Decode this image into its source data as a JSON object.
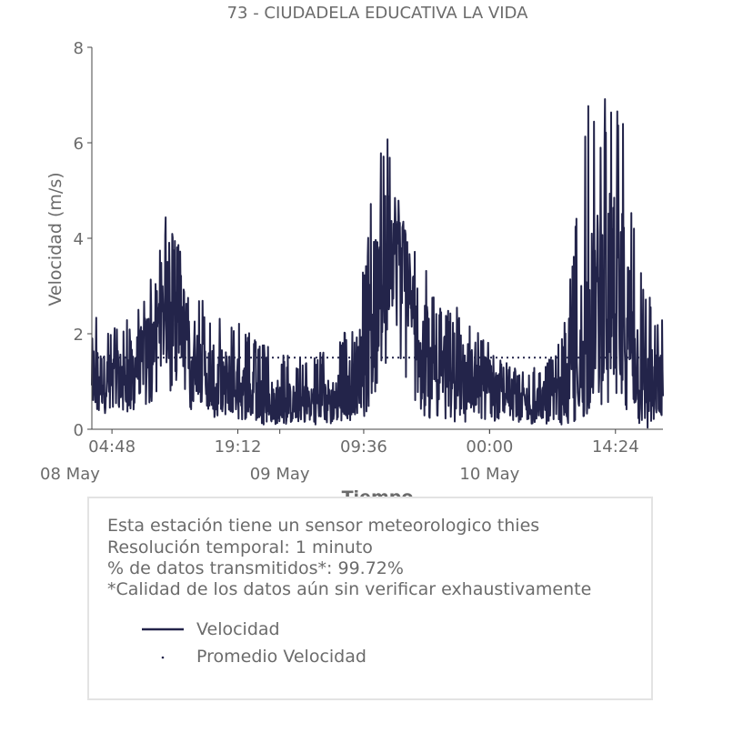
{
  "chart_data": {
    "type": "line",
    "title": "73 - CIUDADELA EDUCATIVA LA VIDA",
    "xlabel": "Tiempo",
    "ylabel": "Velocidad (m/s)",
    "ylim": [
      0,
      8
    ],
    "yticks": [
      "0",
      "2",
      "4",
      "6",
      "8"
    ],
    "xlim": [
      "2024-05-08 02:30",
      "2024-05-10 19:50"
    ],
    "xticks": [
      {
        "time": "2024-05-08 04:48",
        "label": "04:48"
      },
      {
        "time": "2024-05-08 19:12",
        "label": "19:12"
      },
      {
        "time": "2024-05-09 09:36",
        "label": "09:36"
      },
      {
        "time": "2024-05-10 00:00",
        "label": "00:00"
      },
      {
        "time": "2024-05-10 14:24",
        "label": "14:24"
      }
    ],
    "day_labels": [
      {
        "time": "2024-05-08 00:00",
        "label": "08 May"
      },
      {
        "time": "2024-05-09 00:00",
        "label": "09 May"
      },
      {
        "time": "2024-05-10 00:00",
        "label": "10 May"
      }
    ],
    "grid": false,
    "series": [
      {
        "name": "Velocidad",
        "style": "line",
        "color": "#23244a",
        "x": [
          "2024-05-08 02:30",
          "2024-05-08 04:00",
          "2024-05-08 06:00",
          "2024-05-08 08:00",
          "2024-05-08 09:00",
          "2024-05-08 10:00",
          "2024-05-08 11:00",
          "2024-05-08 12:00",
          "2024-05-08 13:00",
          "2024-05-08 14:00",
          "2024-05-08 15:00",
          "2024-05-08 16:00",
          "2024-05-08 18:00",
          "2024-05-08 20:00",
          "2024-05-08 22:00",
          "2024-05-09 00:00",
          "2024-05-09 02:00",
          "2024-05-09 04:00",
          "2024-05-09 06:00",
          "2024-05-09 08:00",
          "2024-05-09 09:30",
          "2024-05-09 10:30",
          "2024-05-09 11:30",
          "2024-05-09 12:30",
          "2024-05-09 13:30",
          "2024-05-09 14:30",
          "2024-05-09 15:30",
          "2024-05-09 16:30",
          "2024-05-09 18:00",
          "2024-05-09 20:00",
          "2024-05-09 22:00",
          "2024-05-10 00:00",
          "2024-05-10 02:00",
          "2024-05-10 04:00",
          "2024-05-10 06:00",
          "2024-05-10 08:00",
          "2024-05-10 09:00",
          "2024-05-10 10:00",
          "2024-05-10 11:00",
          "2024-05-10 12:00",
          "2024-05-10 13:00",
          "2024-05-10 14:00",
          "2024-05-10 15:00",
          "2024-05-10 16:00",
          "2024-05-10 17:00",
          "2024-05-10 18:00",
          "2024-05-10 19:00",
          "2024-05-10 19:50"
        ],
        "mean": [
          1.2,
          1.0,
          1.1,
          1.4,
          1.8,
          2.2,
          2.4,
          2.6,
          2.2,
          1.7,
          1.3,
          1.1,
          1.0,
          0.8,
          0.6,
          0.6,
          0.5,
          0.6,
          0.6,
          0.9,
          1.5,
          2.4,
          3.1,
          3.8,
          4.0,
          3.2,
          2.2,
          1.9,
          1.8,
          1.5,
          1.1,
          1.0,
          0.7,
          0.6,
          0.6,
          0.6,
          0.8,
          1.3,
          2.0,
          2.6,
          3.0,
          3.0,
          2.7,
          2.1,
          1.3,
          0.8,
          0.9,
          1.0
        ],
        "min": [
          0.3,
          0.3,
          0.3,
          0.4,
          0.5,
          0.7,
          0.8,
          0.7,
          0.5,
          0.4,
          0.3,
          0.2,
          0.2,
          0.2,
          0.1,
          0.1,
          0.1,
          0.1,
          0.1,
          0.1,
          0.2,
          0.6,
          1.0,
          1.4,
          1.5,
          0.8,
          0.4,
          0.2,
          0.2,
          0.1,
          0.1,
          0.1,
          0.1,
          0.1,
          0.1,
          0.1,
          0.1,
          0.2,
          0.3,
          0.5,
          0.4,
          0.5,
          0.3,
          0.2,
          0.1,
          0.0,
          0.1,
          0.1
        ],
        "max": [
          2.7,
          2.2,
          2.2,
          2.7,
          3.2,
          3.5,
          4.6,
          4.0,
          3.7,
          3.0,
          2.8,
          2.5,
          2.4,
          2.2,
          1.8,
          1.6,
          1.5,
          1.6,
          1.7,
          2.2,
          3.3,
          5.0,
          6.3,
          6.2,
          5.0,
          4.1,
          3.7,
          3.4,
          2.9,
          2.6,
          2.2,
          1.8,
          1.4,
          1.2,
          1.4,
          1.8,
          2.6,
          5.6,
          6.9,
          6.5,
          7.0,
          7.4,
          7.3,
          5.8,
          4.1,
          3.2,
          2.6,
          2.3
        ]
      },
      {
        "name": "Promedio Velocidad",
        "style": "dotted",
        "color": "#23244a",
        "x": [
          "2024-05-08 02:30",
          "2024-05-10 19:50"
        ],
        "values": [
          1.5,
          1.5
        ]
      }
    ]
  },
  "info": {
    "lines": [
      "Esta estación tiene un sensor meteorologico thies",
      "Resolución temporal: 1 minuto",
      "% de datos transmitidos*: 99.72%",
      "*Calidad de los datos aún sin verificar exhaustivamente"
    ]
  },
  "legend": {
    "items": [
      {
        "label": "Velocidad",
        "marker": "line"
      },
      {
        "label": "Promedio Velocidad",
        "marker": "dot"
      }
    ]
  }
}
